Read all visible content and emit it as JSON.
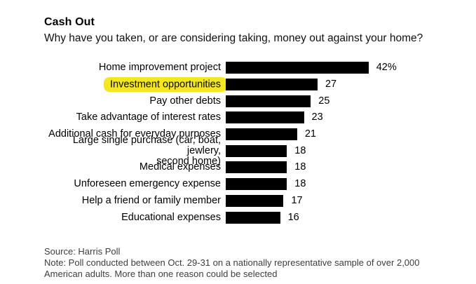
{
  "header": {
    "title": "Cash Out",
    "subtitle": "Why have you taken, or are considering taking, money out against your home?"
  },
  "chart_data": {
    "type": "bar",
    "orientation": "horizontal",
    "title": "Cash Out",
    "subtitle": "Why have you taken, or are considering taking, money out against your home?",
    "categories": [
      "Home improvement project",
      "Investment opportunities",
      "Pay other debts",
      "Take advantage of interest rates",
      "Additional cash for everyday purposes",
      "Large single purchase (car, boat, jewlery,\nsecond home)",
      "Medical expenses",
      "Unforeseen emergency expense",
      "Help a friend or family member",
      "Educational expenses"
    ],
    "values": [
      42,
      27,
      25,
      23,
      21,
      18,
      18,
      18,
      17,
      16
    ],
    "value_labels": [
      "42%",
      "27",
      "25",
      "23",
      "21",
      "18",
      "18",
      "18",
      "17",
      "16"
    ],
    "unit": "percent",
    "highlighted_index": 1,
    "highlighted_category": "Investment opportunities",
    "bar_color": "#000000",
    "highlight_color": "#f5e71e",
    "xlim": [
      0,
      42
    ],
    "grid": false,
    "legend": false,
    "value_label_position": "end-of-bar"
  },
  "footer": {
    "source": "Source: Harris Poll",
    "note": "Note: Poll conducted between Oct. 29-31 on a nationally representative sample of over 2,000\nAmerican adults. More than one reason could be selected"
  }
}
